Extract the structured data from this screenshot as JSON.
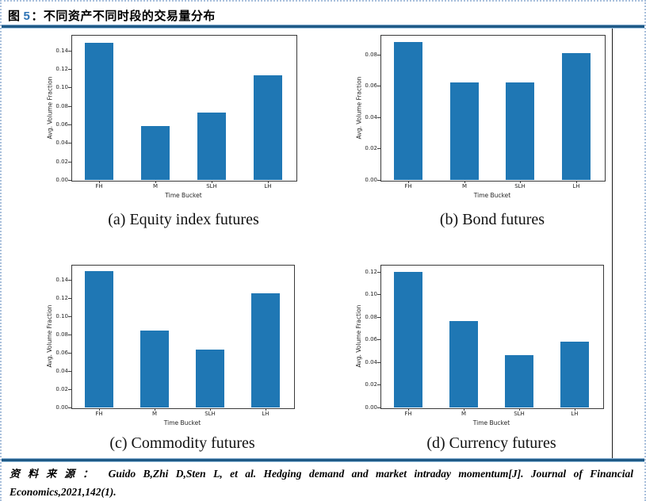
{
  "header": {
    "fig_label": "图",
    "fig_number": "5",
    "title_separator": "：",
    "title": "不同资产不同时段的交易量分布"
  },
  "source": {
    "label": "资料来源：",
    "citation_line1": "Guido B,Zhi D,Sten L, et al. Hedging demand and market intraday momentum[J]. Journal of Financial",
    "citation_line2": "Economics,2021,142(1)."
  },
  "colors": {
    "bar": "#1f77b4",
    "rule_blue": "#1f5a87",
    "fig_number_blue": "#2e74b5",
    "dotted_border": "#a9c0dc",
    "divider_line": "#1a1a1a"
  },
  "chart_data": [
    {
      "type": "bar",
      "panel": "a",
      "caption": "(a) Equity index futures",
      "categories": [
        "FH",
        "M",
        "SLH",
        "LH"
      ],
      "values": [
        0.148,
        0.058,
        0.073,
        0.113
      ],
      "xlabel": "Time Bucket",
      "ylabel": "Avg. Volume Fraction",
      "ylim": [
        0,
        0.157
      ],
      "yticks": [
        0,
        0.02,
        0.04,
        0.06,
        0.08,
        0.1,
        0.12,
        0.14
      ],
      "grid": false
    },
    {
      "type": "bar",
      "panel": "b",
      "caption": "(b) Bond futures",
      "categories": [
        "FH",
        "M",
        "SLH",
        "LH"
      ],
      "values": [
        0.088,
        0.062,
        0.062,
        0.081
      ],
      "xlabel": "Time Bucket",
      "ylabel": "Avg. Volume Fraction",
      "ylim": [
        0,
        0.0925
      ],
      "yticks": [
        0,
        0.02,
        0.04,
        0.06,
        0.08
      ],
      "grid": false
    },
    {
      "type": "bar",
      "panel": "c",
      "caption": "(c) Commodity futures",
      "categories": [
        "FH",
        "M",
        "SLH",
        "LH"
      ],
      "values": [
        0.15,
        0.085,
        0.064,
        0.126
      ],
      "xlabel": "Time Bucket",
      "ylabel": "Avg. Volume Fraction",
      "ylim": [
        0,
        0.157
      ],
      "yticks": [
        0,
        0.02,
        0.04,
        0.06,
        0.08,
        0.1,
        0.12,
        0.14
      ],
      "grid": false
    },
    {
      "type": "bar",
      "panel": "d",
      "caption": "(d) Currency futures",
      "categories": [
        "FH",
        "M",
        "SLH",
        "LH"
      ],
      "values": [
        0.12,
        0.076,
        0.046,
        0.058
      ],
      "xlabel": "Time Bucket",
      "ylabel": "Avg. Volume Fraction",
      "ylim": [
        0,
        0.126
      ],
      "yticks": [
        0,
        0.02,
        0.04,
        0.06,
        0.08,
        0.1,
        0.12
      ],
      "grid": false
    }
  ]
}
